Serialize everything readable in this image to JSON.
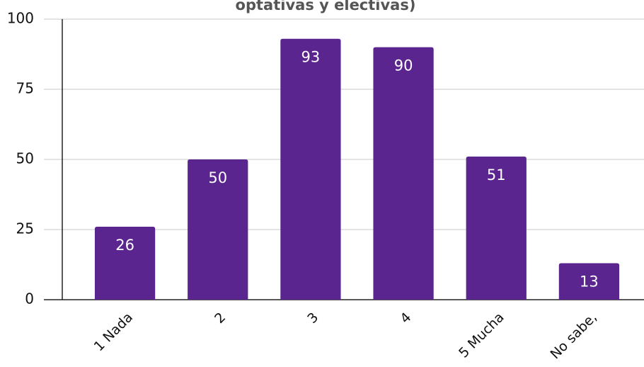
{
  "chart_data": {
    "type": "bar",
    "title": "optativas y electivas)",
    "categories": [
      "1 Nada",
      "2",
      "3",
      "4",
      "5 Mucha",
      "No sabe,"
    ],
    "values": [
      26,
      50,
      93,
      90,
      51,
      13
    ],
    "color": "#5b2590",
    "ylim": [
      0,
      100
    ],
    "yticks": [
      0,
      25,
      50,
      75,
      100
    ],
    "grid": true
  }
}
